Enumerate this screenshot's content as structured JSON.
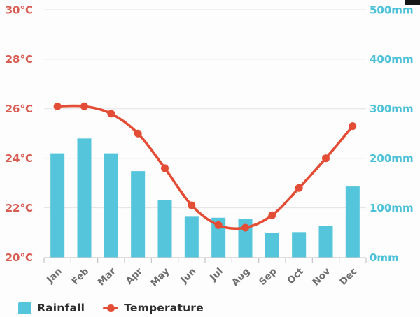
{
  "chart_data": {
    "type": "bar",
    "subtype": "bar-line-combo",
    "title": "",
    "categories": [
      "Jan",
      "Feb",
      "Mar",
      "Apr",
      "May",
      "Jun",
      "Jul",
      "Aug",
      "Sep",
      "Oct",
      "Nov",
      "Dec"
    ],
    "series": [
      {
        "name": "Rainfall",
        "type": "bar",
        "unit": "mm",
        "axis": "right",
        "color": "#54c5db",
        "values": [
          210,
          240,
          210,
          174,
          115,
          82,
          80,
          78,
          49,
          51,
          64,
          143
        ]
      },
      {
        "name": "Temperature",
        "type": "line",
        "unit": "°C",
        "axis": "left",
        "color": "#e44d35",
        "values": [
          26.1,
          26.1,
          25.8,
          25.0,
          23.6,
          22.1,
          21.3,
          21.2,
          21.7,
          22.8,
          24.0,
          25.3
        ]
      }
    ],
    "axes": {
      "left": {
        "min": 20,
        "max": 30,
        "labels": [
          "30°C",
          "28°C",
          "26°C",
          "24°C",
          "22°C",
          "20°C"
        ],
        "label_color": "#d85c52"
      },
      "right": {
        "min": 0,
        "max": 500,
        "labels": [
          "500mm",
          "400mm",
          "300mm",
          "200mm",
          "100mm",
          "0mm"
        ],
        "label_color": "#4cc1d7"
      }
    },
    "x_axis": {
      "label_color": "#6e6e6e",
      "label_rotation_deg": -45
    },
    "grid": {
      "show": true,
      "color": "#e3e3e3",
      "axis_line_color": "#cccccc",
      "tick_color": "#c4c4c4"
    },
    "legend_position": "bottom-left"
  },
  "legend": {
    "rainfall_label": "Rainfall",
    "temperature_label": "Temperature"
  },
  "decor": {
    "corner_artifact_color": "#161616"
  }
}
